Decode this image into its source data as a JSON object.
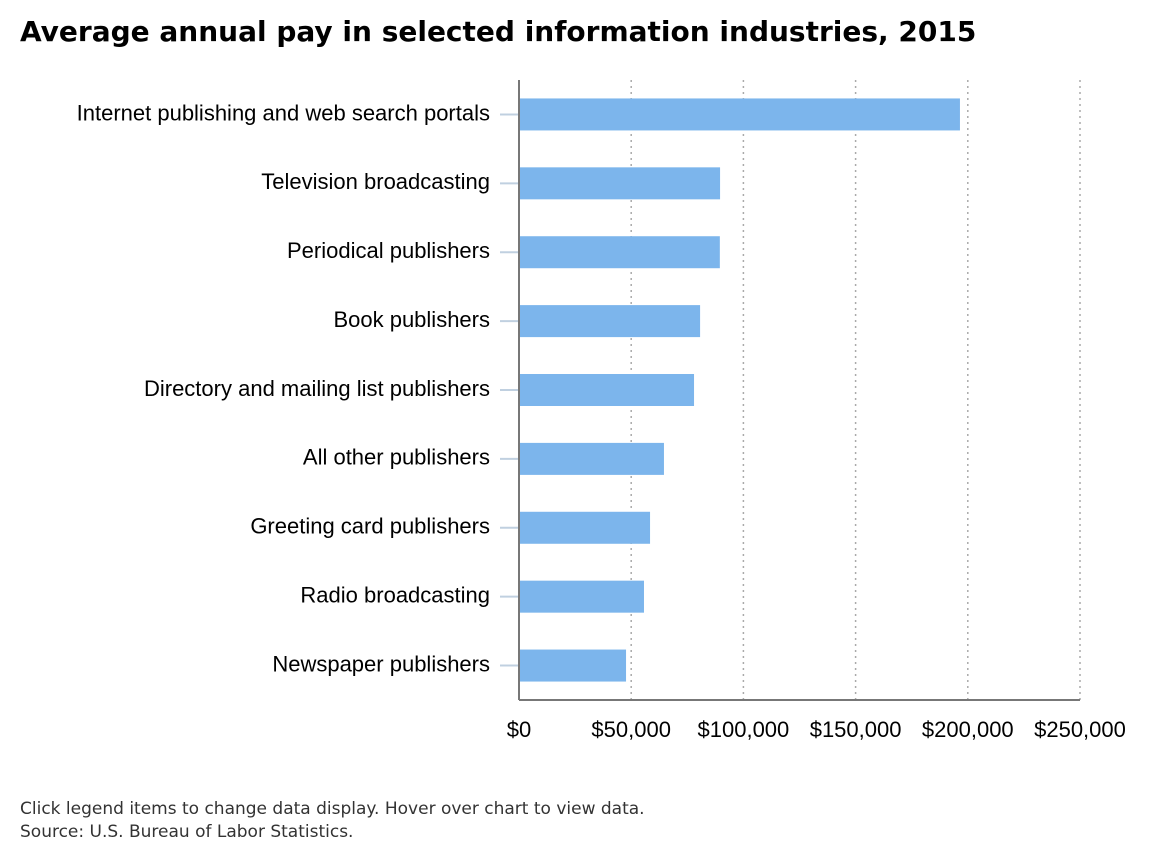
{
  "chart_data": {
    "type": "bar",
    "orientation": "horizontal",
    "title": "Average annual pay in selected information industries, 2015",
    "categories": [
      "Internet publishing and web search portals",
      "Television broadcasting",
      "Periodical publishers",
      "Book publishers",
      "Directory and mailing list publishers",
      "All other publishers",
      "Greeting card publishers",
      "Radio broadcasting",
      "Newspaper publishers"
    ],
    "values": [
      196500,
      89600,
      89500,
      80700,
      78000,
      64600,
      58400,
      55700,
      47700
    ],
    "color": "#7cb5ec",
    "xlim": [
      0,
      250000
    ],
    "xticks": [
      {
        "value": 0,
        "label": "$0"
      },
      {
        "value": 50000,
        "label": "$50,000"
      },
      {
        "value": 100000,
        "label": "$100,000"
      },
      {
        "value": 150000,
        "label": "$150,000"
      },
      {
        "value": 200000,
        "label": "$200,000"
      },
      {
        "value": 250000,
        "label": "$250,000"
      }
    ],
    "grid": true,
    "notes": [
      "Click legend items to change data display. Hover over chart to view data.",
      "Source: U.S. Bureau of Labor Statistics."
    ]
  }
}
